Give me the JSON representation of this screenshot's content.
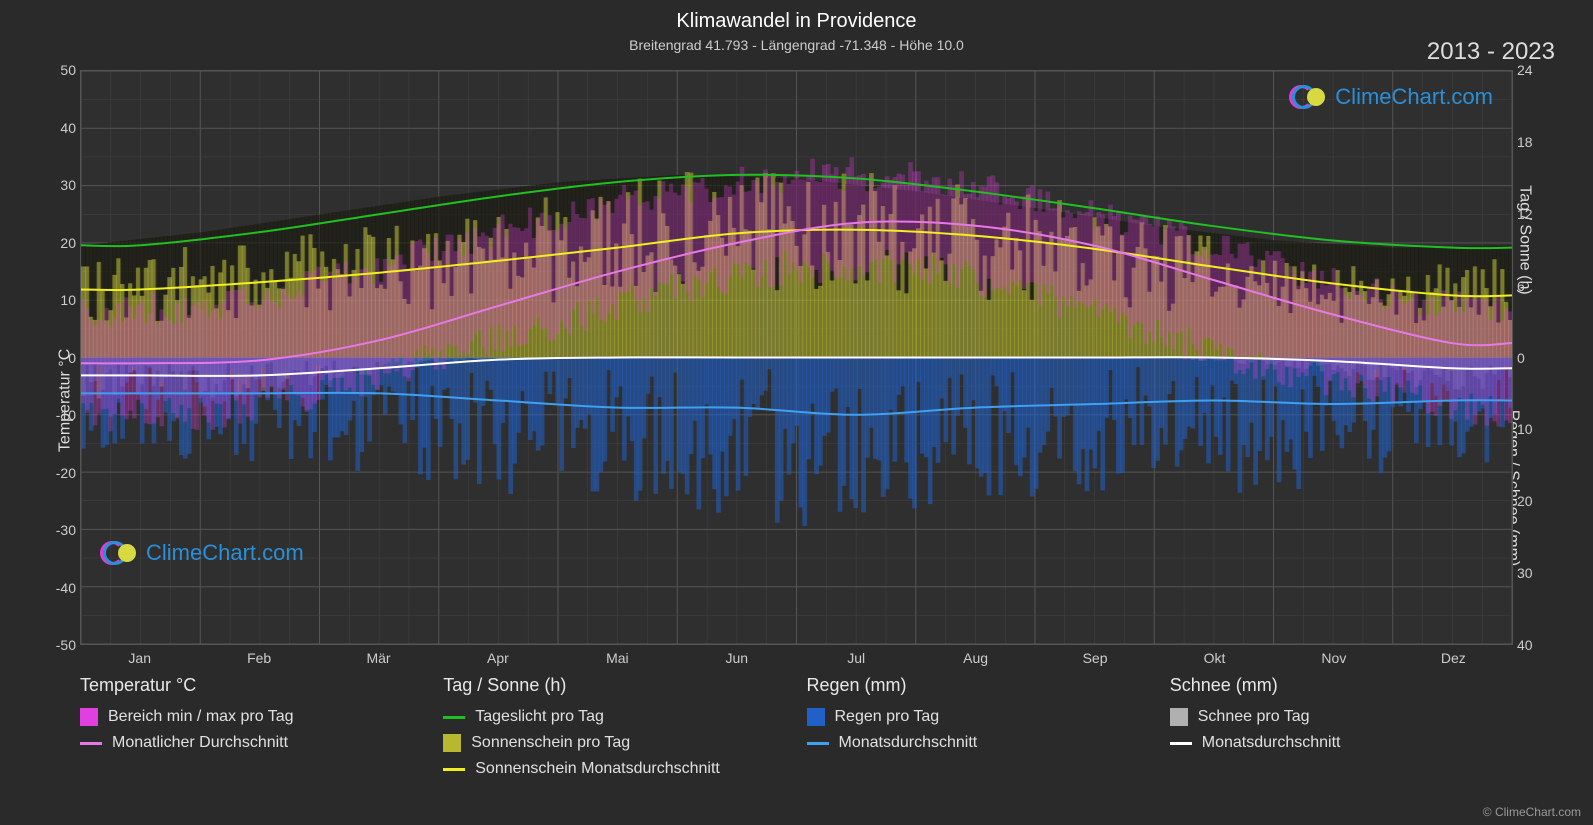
{
  "title": "Klimawandel in Providence",
  "subtitle": "Breitengrad 41.793 - Längengrad -71.348 - Höhe 10.0",
  "year_range": "2013 - 2023",
  "copyright": "© ClimeChart.com",
  "watermark_text": "ClimeChart.com",
  "chart": {
    "type": "composite-climate",
    "background_color": "#2f2f2f",
    "grid_color": "#555555",
    "grid_minor_color": "#444444",
    "y_left": {
      "label": "Temperatur °C",
      "min": -50,
      "max": 50,
      "ticks": [
        -50,
        -40,
        -30,
        -20,
        -10,
        0,
        10,
        20,
        30,
        40,
        50
      ]
    },
    "y_right_top": {
      "label": "Tag / Sonne (h)",
      "min": 0,
      "max": 24,
      "ticks": [
        0,
        6,
        12,
        18,
        24
      ]
    },
    "y_right_bottom": {
      "label": "Regen / Schnee (mm)",
      "min": 0,
      "max": 40,
      "ticks": [
        0,
        10,
        20,
        30,
        40
      ]
    },
    "x": {
      "months": [
        "Jan",
        "Feb",
        "Mär",
        "Apr",
        "Mai",
        "Jun",
        "Jul",
        "Aug",
        "Sep",
        "Okt",
        "Nov",
        "Dez"
      ]
    },
    "colors": {
      "temp_range": "#e040e0",
      "monthly_avg": "#e878e8",
      "daylight": "#20c020",
      "sunshine_bars": "#b8b830",
      "sunshine_avg": "#f0f020",
      "rain_bars": "#2060c8",
      "rain_avg": "#40a0f0",
      "snow_bars": "#b0b0b0",
      "snow_avg": "#ffffff"
    },
    "series": {
      "daylight_hours": [
        9.4,
        10.5,
        12.0,
        13.5,
        14.7,
        15.3,
        15.0,
        13.9,
        12.5,
        11.0,
        9.8,
        9.2
      ],
      "sunshine_avg_hours": [
        5.7,
        6.3,
        7.1,
        8.1,
        9.2,
        10.4,
        10.7,
        10.2,
        9.1,
        7.6,
        6.2,
        5.2
      ],
      "temp_monthly_avg_c": [
        -1.0,
        -0.5,
        3.0,
        9.0,
        15.0,
        20.0,
        23.5,
        23.0,
        19.5,
        13.5,
        7.5,
        2.5
      ],
      "temp_range_min_c": [
        -10,
        -10,
        -6,
        0,
        6,
        12,
        16,
        16,
        11,
        4,
        -2,
        -6
      ],
      "temp_range_max_c": [
        8,
        9,
        13,
        19,
        25,
        29,
        32,
        32,
        28,
        22,
        16,
        10
      ],
      "rain_avg_mm": [
        5,
        5,
        5,
        6,
        7,
        7,
        8,
        7,
        6.5,
        6,
        6.5,
        6
      ],
      "snow_avg_mm": [
        2.5,
        2.5,
        1.5,
        0.3,
        0,
        0,
        0,
        0,
        0,
        0,
        0.5,
        1.5
      ]
    }
  },
  "legend": {
    "groups": [
      {
        "header": "Temperatur °C",
        "items": [
          {
            "type": "swatch",
            "color": "#e040e0",
            "label": "Bereich min / max pro Tag"
          },
          {
            "type": "line",
            "color": "#e878e8",
            "label": "Monatlicher Durchschnitt"
          }
        ]
      },
      {
        "header": "Tag / Sonne (h)",
        "items": [
          {
            "type": "line",
            "color": "#20c020",
            "label": "Tageslicht pro Tag"
          },
          {
            "type": "swatch",
            "color": "#b8b830",
            "label": "Sonnenschein pro Tag"
          },
          {
            "type": "line",
            "color": "#f0f020",
            "label": "Sonnenschein Monatsdurchschnitt"
          }
        ]
      },
      {
        "header": "Regen (mm)",
        "items": [
          {
            "type": "swatch",
            "color": "#2060c8",
            "label": "Regen pro Tag"
          },
          {
            "type": "line",
            "color": "#40a0f0",
            "label": "Monatsdurchschnitt"
          }
        ]
      },
      {
        "header": "Schnee (mm)",
        "items": [
          {
            "type": "swatch",
            "color": "#b0b0b0",
            "label": "Schnee pro Tag"
          },
          {
            "type": "line",
            "color": "#ffffff",
            "label": "Monatsdurchschnitt"
          }
        ]
      }
    ]
  }
}
